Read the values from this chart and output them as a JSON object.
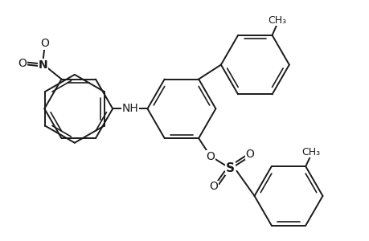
{
  "bg_color": "#ffffff",
  "line_color": "#1a1a1a",
  "line_width": 1.4,
  "font_size_atom": 10,
  "font_size_methyl": 9,
  "figsize": [
    4.6,
    3.0
  ],
  "dpi": 100,
  "xlim": [
    -2.8,
    2.8
  ],
  "ylim": [
    -1.6,
    1.8
  ]
}
